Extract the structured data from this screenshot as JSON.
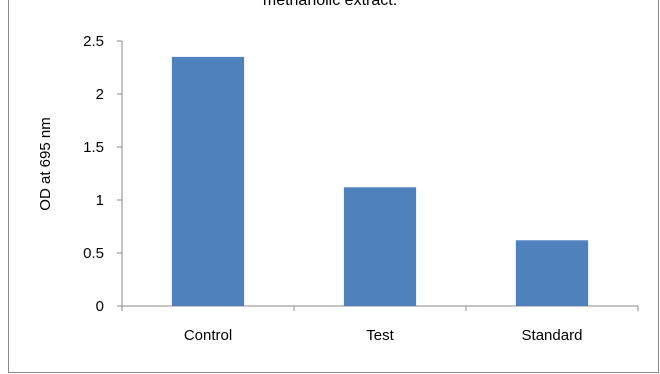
{
  "chart_data": {
    "type": "bar",
    "title": "methanolic extract.",
    "xlabel": "",
    "ylabel": "OD at 695 nm",
    "categories": [
      "Control",
      "Test",
      "Standard"
    ],
    "values": [
      2.35,
      1.12,
      0.62
    ],
    "ylim": [
      0,
      2.5
    ],
    "yticks": [
      "0",
      "0.5",
      "1",
      "1.5",
      "2",
      "2.5"
    ],
    "bar_color": "#4f81bd",
    "grid": false,
    "legend": "none"
  }
}
